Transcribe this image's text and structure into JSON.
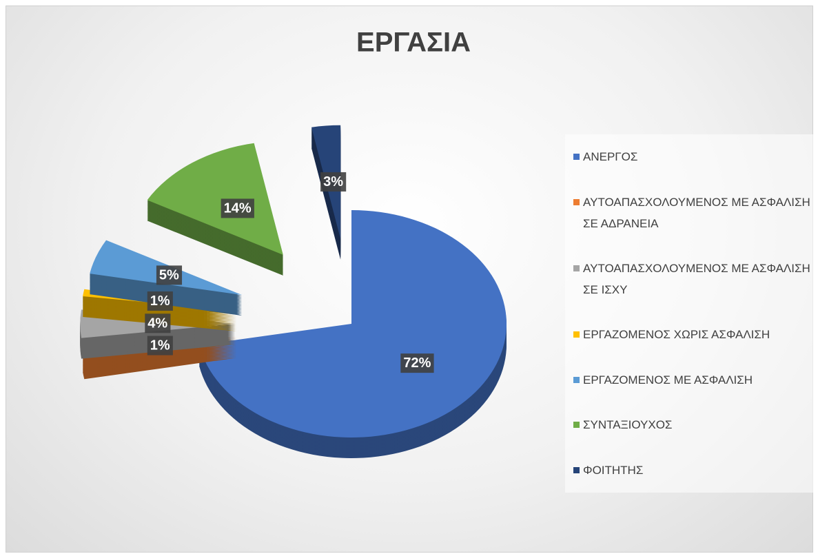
{
  "chart_data": {
    "type": "pie",
    "title": "ΕΡΓΑΣΙΑ",
    "categories": [
      "ΑΝΕΡΓΟΣ",
      "ΑΥΤΟΑΠΑΣΧΟΛΟΥΜΕΝΟΣ ΜΕ ΑΣΦΑΛΙΣΗ ΣΕ ΑΔΡΑΝΕΙΑ",
      "ΑΥΤΟΑΠΑΣΧΟΛΟΥΜΕΝΟΣ ΜΕ ΑΣΦΑΛΙΣΗ ΣΕ ΙΣΧΥ",
      "ΕΡΓΑΖΟΜΕΝΟΣ ΧΩΡΙΣ ΑΣΦΑΛΙΣΗ",
      "ΕΡΓΑΖΟΜΕΝΟΣ ΜΕ ΑΣΦΑΛΙΣΗ",
      "ΣΥΝΤΑΞΙΟΥΧΟΣ",
      "ΦΟΙΤΗΤΗΣ"
    ],
    "values": [
      72,
      1,
      4,
      1,
      5,
      14,
      3
    ],
    "value_labels": [
      "72%",
      "1%",
      "4%",
      "1%",
      "5%",
      "14%",
      "3%"
    ],
    "colors": [
      "#4472c4",
      "#ed7d31",
      "#a5a5a5",
      "#ffc000",
      "#5b9bd5",
      "#70ad47",
      "#264478"
    ],
    "legend": "right"
  }
}
